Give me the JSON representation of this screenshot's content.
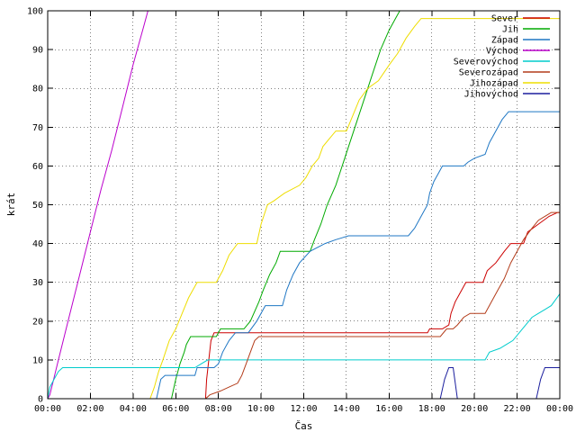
{
  "chart_data": {
    "type": "line",
    "title": "",
    "xlabel": "Čas",
    "ylabel": "krát",
    "xlim": [
      0,
      24
    ],
    "ylim": [
      0,
      100
    ],
    "x_unit": "hours",
    "x_tick_labels": [
      "00:00",
      "02:00",
      "04:00",
      "06:00",
      "08:00",
      "10:00",
      "12:00",
      "14:00",
      "16:00",
      "18:00",
      "20:00",
      "22:00",
      "00:00"
    ],
    "y_ticks": [
      0,
      10,
      20,
      30,
      40,
      50,
      60,
      70,
      80,
      90,
      100
    ],
    "grid": true,
    "legend_position": "top-right",
    "series": [
      {
        "name": "Sever",
        "color": "#cc0000",
        "points": [
          [
            0,
            0
          ],
          [
            7.4,
            0
          ],
          [
            7.45,
            5
          ],
          [
            7.55,
            10
          ],
          [
            7.65,
            15
          ],
          [
            7.8,
            17
          ],
          [
            17.8,
            17
          ],
          [
            17.9,
            18
          ],
          [
            18.5,
            18
          ],
          [
            18.8,
            19
          ],
          [
            18.9,
            22
          ],
          [
            19.1,
            25
          ],
          [
            19.3,
            27
          ],
          [
            19.6,
            30
          ],
          [
            20.4,
            30
          ],
          [
            20.6,
            33
          ],
          [
            21.0,
            35
          ],
          [
            21.4,
            38
          ],
          [
            21.7,
            40
          ],
          [
            22.3,
            40
          ],
          [
            22.5,
            43
          ],
          [
            23.0,
            45
          ],
          [
            23.5,
            47
          ],
          [
            23.9,
            48
          ],
          [
            24,
            48
          ]
        ]
      },
      {
        "name": "Jih",
        "color": "#00aa00",
        "points": [
          [
            0,
            0
          ],
          [
            5.8,
            0
          ],
          [
            6.0,
            5
          ],
          [
            6.2,
            9
          ],
          [
            6.4,
            12
          ],
          [
            6.5,
            14
          ],
          [
            6.7,
            16
          ],
          [
            7.9,
            16
          ],
          [
            8.0,
            17
          ],
          [
            8.1,
            18
          ],
          [
            9.2,
            18
          ],
          [
            9.5,
            20
          ],
          [
            9.9,
            25
          ],
          [
            10.1,
            28
          ],
          [
            10.4,
            32
          ],
          [
            10.7,
            35
          ],
          [
            10.9,
            38
          ],
          [
            12.3,
            38
          ],
          [
            12.5,
            41
          ],
          [
            12.8,
            45
          ],
          [
            13.1,
            50
          ],
          [
            13.5,
            55
          ],
          [
            13.8,
            60
          ],
          [
            14.1,
            65
          ],
          [
            14.4,
            70
          ],
          [
            14.7,
            75
          ],
          [
            15.0,
            80
          ],
          [
            15.3,
            85
          ],
          [
            15.6,
            90
          ],
          [
            16.0,
            95
          ],
          [
            16.3,
            98
          ],
          [
            16.5,
            100
          ]
        ]
      },
      {
        "name": "Západ",
        "color": "#1f77c4",
        "points": [
          [
            0,
            0
          ],
          [
            5.1,
            0
          ],
          [
            5.3,
            5
          ],
          [
            5.5,
            6
          ],
          [
            6.9,
            6
          ],
          [
            7.0,
            8
          ],
          [
            7.8,
            8
          ],
          [
            8.0,
            9
          ],
          [
            8.2,
            12
          ],
          [
            8.5,
            15
          ],
          [
            8.8,
            17
          ],
          [
            9.4,
            17
          ],
          [
            9.8,
            20
          ],
          [
            10.2,
            24
          ],
          [
            11.0,
            24
          ],
          [
            11.2,
            28
          ],
          [
            11.5,
            32
          ],
          [
            11.8,
            35
          ],
          [
            12.3,
            38
          ],
          [
            13.0,
            40
          ],
          [
            13.5,
            41
          ],
          [
            14.1,
            42
          ],
          [
            16.9,
            42
          ],
          [
            17.2,
            44
          ],
          [
            17.5,
            47
          ],
          [
            17.8,
            50
          ],
          [
            17.9,
            53
          ],
          [
            18.1,
            56
          ],
          [
            18.3,
            58
          ],
          [
            18.5,
            60
          ],
          [
            19.5,
            60
          ],
          [
            19.7,
            61
          ],
          [
            20.0,
            62
          ],
          [
            20.5,
            63
          ],
          [
            20.7,
            66
          ],
          [
            21.0,
            69
          ],
          [
            21.3,
            72
          ],
          [
            21.6,
            74
          ],
          [
            24,
            74
          ]
        ]
      },
      {
        "name": "Východ",
        "color": "#bb00cc",
        "points": [
          [
            0,
            0
          ],
          [
            0.1,
            1
          ],
          [
            0.5,
            10
          ],
          [
            1.0,
            21
          ],
          [
            1.5,
            32
          ],
          [
            2.0,
            43
          ],
          [
            2.5,
            54
          ],
          [
            3.0,
            64
          ],
          [
            3.5,
            75
          ],
          [
            4.0,
            86
          ],
          [
            4.5,
            96
          ],
          [
            4.7,
            100
          ]
        ]
      },
      {
        "name": "Severovýchod",
        "color": "#00cccc",
        "points": [
          [
            0,
            0
          ],
          [
            0.1,
            3
          ],
          [
            0.3,
            5
          ],
          [
            0.5,
            7
          ],
          [
            0.7,
            8
          ],
          [
            6.9,
            8
          ],
          [
            7.2,
            9
          ],
          [
            7.5,
            10
          ],
          [
            20.5,
            10
          ],
          [
            20.7,
            12
          ],
          [
            21.2,
            13
          ],
          [
            21.5,
            14
          ],
          [
            21.8,
            15
          ],
          [
            22.1,
            17
          ],
          [
            22.4,
            19
          ],
          [
            22.7,
            21
          ],
          [
            23.0,
            22
          ],
          [
            23.3,
            23
          ],
          [
            23.6,
            24
          ],
          [
            24,
            27
          ]
        ]
      },
      {
        "name": "Severozápad",
        "color": "#b33c1a",
        "points": [
          [
            0,
            0
          ],
          [
            7.4,
            0
          ],
          [
            7.6,
            1
          ],
          [
            8.1,
            2
          ],
          [
            8.5,
            3
          ],
          [
            8.9,
            4
          ],
          [
            9.1,
            6
          ],
          [
            9.3,
            9
          ],
          [
            9.5,
            12
          ],
          [
            9.7,
            15
          ],
          [
            9.9,
            16
          ],
          [
            18.4,
            16
          ],
          [
            18.7,
            18
          ],
          [
            19.0,
            18
          ],
          [
            19.2,
            19
          ],
          [
            19.5,
            21
          ],
          [
            19.8,
            22
          ],
          [
            20.5,
            22
          ],
          [
            20.8,
            25
          ],
          [
            21.1,
            28
          ],
          [
            21.4,
            31
          ],
          [
            21.7,
            35
          ],
          [
            22.0,
            38
          ],
          [
            22.3,
            41
          ],
          [
            22.7,
            44
          ],
          [
            23.0,
            46
          ],
          [
            23.3,
            47
          ],
          [
            23.6,
            48
          ],
          [
            24,
            48
          ]
        ]
      },
      {
        "name": "Jihozápad",
        "color": "#eedd00",
        "points": [
          [
            0,
            0
          ],
          [
            4.8,
            0
          ],
          [
            5.0,
            3
          ],
          [
            5.2,
            7
          ],
          [
            5.4,
            10
          ],
          [
            5.7,
            15
          ],
          [
            6.0,
            18
          ],
          [
            6.3,
            22
          ],
          [
            6.6,
            26
          ],
          [
            7.0,
            30
          ],
          [
            7.9,
            30
          ],
          [
            8.2,
            33
          ],
          [
            8.5,
            37
          ],
          [
            8.9,
            40
          ],
          [
            9.8,
            40
          ],
          [
            10.0,
            45
          ],
          [
            10.3,
            50
          ],
          [
            10.6,
            51
          ],
          [
            11.1,
            53
          ],
          [
            11.8,
            55
          ],
          [
            12.1,
            57
          ],
          [
            12.4,
            60
          ],
          [
            12.7,
            62
          ],
          [
            12.9,
            65
          ],
          [
            13.2,
            67
          ],
          [
            13.5,
            69
          ],
          [
            14.0,
            69
          ],
          [
            14.3,
            73
          ],
          [
            14.6,
            77
          ],
          [
            15.0,
            80
          ],
          [
            15.5,
            82
          ],
          [
            16.0,
            86
          ],
          [
            16.4,
            89
          ],
          [
            16.8,
            93
          ],
          [
            17.2,
            96
          ],
          [
            17.5,
            98
          ],
          [
            24,
            98
          ]
        ]
      },
      {
        "name": "Jihovýchod",
        "color": "#1c1f9e",
        "points": [
          [
            0,
            0
          ],
          [
            18.4,
            0
          ],
          [
            18.6,
            5
          ],
          [
            18.8,
            8
          ],
          [
            19.0,
            8
          ],
          [
            19.2,
            0
          ],
          [
            22.9,
            0
          ],
          [
            23.1,
            5
          ],
          [
            23.3,
            8
          ],
          [
            24,
            8
          ]
        ]
      }
    ]
  }
}
